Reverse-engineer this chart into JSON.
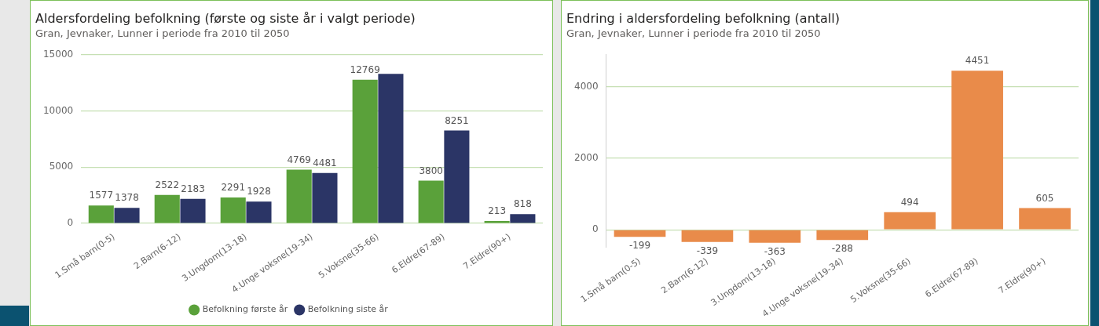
{
  "chart_data": [
    {
      "type": "bar",
      "title": "Aldersfordeling befolkning (første og siste år i valgt periode)",
      "subtitle": "Gran, Jevnaker, Lunner i periode fra 2010 til 2050",
      "categories": [
        "1.Små barn(0-5)",
        "2.Barn(6-12)",
        "3.Ungdom(13-18)",
        "4.Unge voksne(19-34)",
        "5.Voksne(35-66)",
        "6.Eldre(67-89)",
        "7.Eldre(90+)"
      ],
      "series": [
        {
          "name": "Befolkning første år",
          "color": "#5aa13a",
          "values": [
            1577,
            2522,
            2291,
            4769,
            12769,
            3800,
            213
          ],
          "value_labels": [
            "1577",
            "2522",
            "2291",
            "4769",
            "12769",
            "3800",
            "213"
          ]
        },
        {
          "name": "Befolkning siste år",
          "color": "#2b3566",
          "values": [
            1378,
            2183,
            1928,
            4481,
            13300,
            8251,
            818
          ],
          "value_labels": [
            "1378",
            "2183",
            "1928",
            "4481",
            null,
            "8251",
            "818"
          ]
        }
      ],
      "ylim": [
        0,
        15000
      ],
      "yticks": [
        0,
        5000,
        10000,
        15000
      ],
      "grid": "y",
      "legend": "bottom"
    },
    {
      "type": "bar",
      "title": "Endring i aldersfordeling befolkning (antall)",
      "subtitle": "Gran, Jevnaker, Lunner i periode fra 2010 til 2050",
      "categories": [
        "1.Små barn(0-5)",
        "2.Barn(6-12)",
        "3.Ungdom(13-18)",
        "4.Unge voksne(19-34)",
        "5.Voksne(35-66)",
        "6.Eldre(67-89)",
        "7.Eldre(90+)"
      ],
      "values": [
        -199,
        -339,
        -363,
        -288,
        494,
        4451,
        605
      ],
      "color": "#e98b4a",
      "data_labels": true,
      "ylim": [
        -500,
        4900
      ],
      "yticks": [
        0,
        2000,
        4000
      ],
      "grid": "y"
    }
  ]
}
